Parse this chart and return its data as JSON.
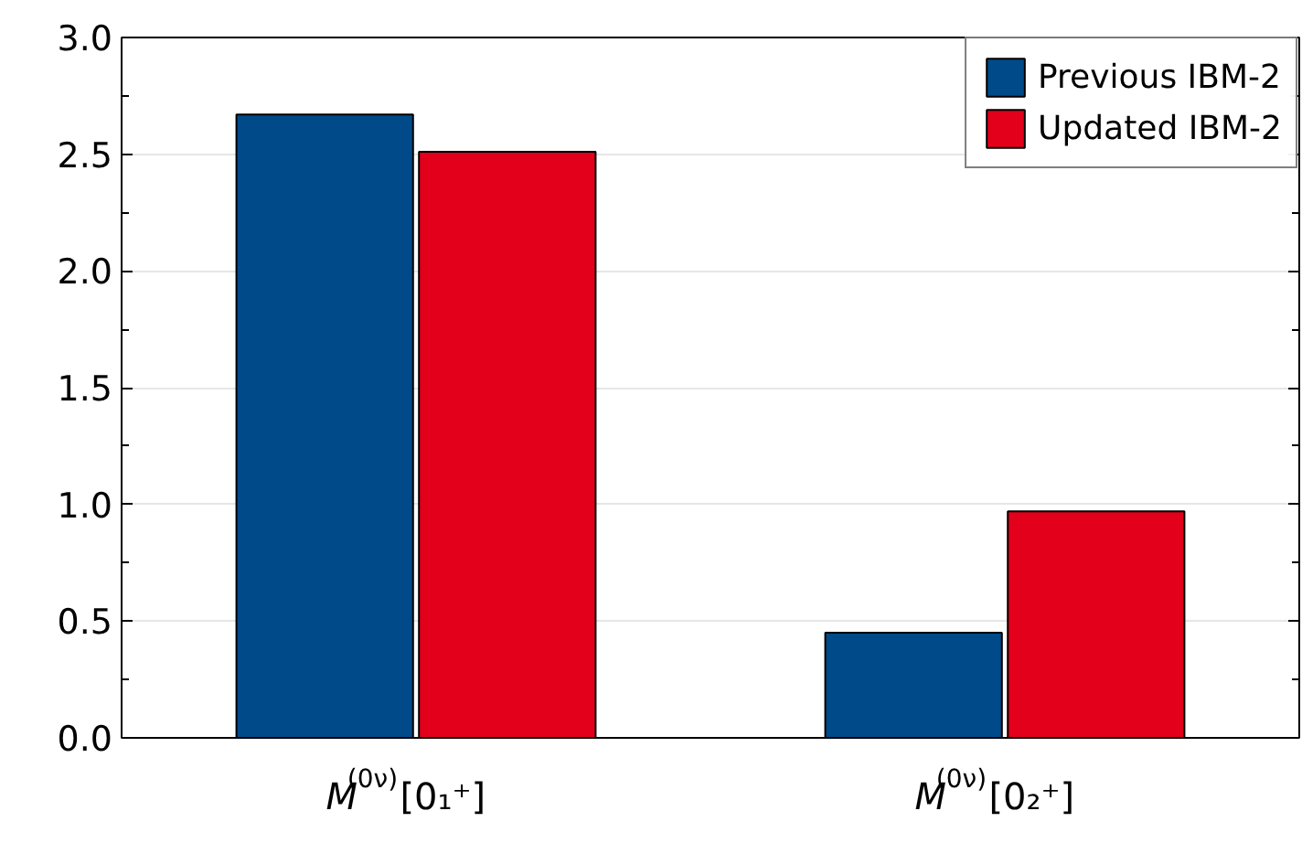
{
  "chart_data": {
    "type": "bar",
    "categories": [
      "M$^{(0ν)}$[0₁⁺]",
      "M$^{(0ν)}$[0₂⁺]"
    ],
    "series": [
      {
        "name": "Previous IBM-2",
        "color": "#004a8a",
        "values": [
          2.67,
          0.45
        ]
      },
      {
        "name": "Updated IBM-2",
        "color": "#e2001a",
        "values": [
          2.51,
          0.97
        ]
      }
    ],
    "ylim": [
      0,
      3
    ],
    "yticks": [
      {
        "value": 0,
        "label": "0.0"
      },
      {
        "value": 0.5,
        "label": "0.5"
      },
      {
        "value": 1,
        "label": "1.0"
      },
      {
        "value": 1.5,
        "label": "1.5"
      },
      {
        "value": 2,
        "label": "2.0"
      },
      {
        "value": 2.5,
        "label": "2.5"
      },
      {
        "value": 3,
        "label": "3.0"
      }
    ],
    "grid": "y",
    "legend": "top right"
  }
}
